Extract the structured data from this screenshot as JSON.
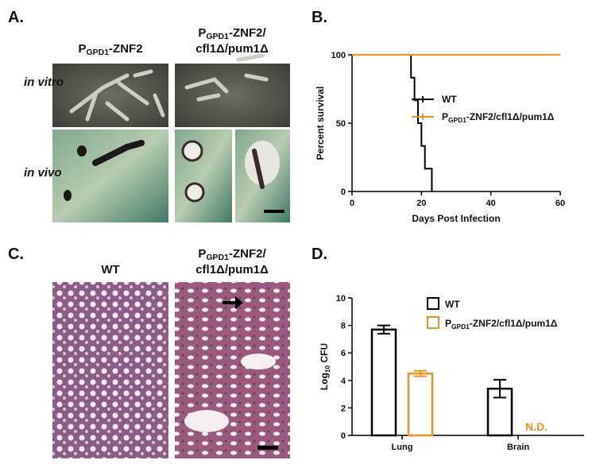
{
  "panel_a": {
    "label": "A.",
    "columns": [
      [
        [
          "P",
          "GPD1",
          "-ZNF2"
        ]
      ],
      [
        [
          "P",
          "GPD1",
          "-ZNF2/"
        ],
        [
          "cfl1Δ/pum1Δ"
        ]
      ]
    ],
    "rows": [
      "in vitro",
      "in vivo"
    ]
  },
  "panel_c": {
    "label": "C.",
    "columns": [
      [
        [
          "WT"
        ]
      ],
      [
        [
          "P",
          "GPD1",
          "-ZNF2/"
        ],
        [
          "cfl1Δ/pum1Δ"
        ]
      ]
    ]
  },
  "chart_data": [
    {
      "type": "line",
      "panel": "B.",
      "ylabel": "Percent survival",
      "xlabel": "Days Post Infection",
      "xlim": [
        0,
        60
      ],
      "xticks": [
        0,
        20,
        40,
        60
      ],
      "ylim": [
        0,
        100
      ],
      "yticks": [
        0,
        50,
        100
      ],
      "series": [
        {
          "name": [
            "WT"
          ],
          "color": "#000000",
          "x": [
            0,
            17,
            18,
            19,
            20,
            21,
            23
          ],
          "values": [
            100,
            83.3,
            66.7,
            50,
            33.3,
            16.7,
            0
          ]
        },
        {
          "name": [
            "P",
            "GPD1",
            "-ZNF2/cfl1Δ/pum1Δ"
          ],
          "color": "#f0931e",
          "x": [
            0,
            60
          ],
          "values": [
            100,
            100
          ]
        }
      ]
    },
    {
      "type": "bar",
      "panel": "D.",
      "ylabel": [
        "Log",
        "10",
        " CFU"
      ],
      "categories": [
        "Lung",
        "Brain"
      ],
      "ylim": [
        0,
        10
      ],
      "yticks": [
        0,
        2,
        4,
        6,
        8,
        10
      ],
      "annotation": "N.D.",
      "series": [
        {
          "name": [
            "WT"
          ],
          "color": "#000000",
          "values": [
            7.7,
            3.4
          ],
          "errors": [
            0.3,
            0.65
          ]
        },
        {
          "name": [
            "P",
            "GPD1",
            "-ZNF2/cfl1Δ/pum1Δ"
          ],
          "color": "#f0931e",
          "values": [
            4.5,
            null
          ],
          "errors": [
            0.2,
            null
          ]
        }
      ]
    }
  ]
}
